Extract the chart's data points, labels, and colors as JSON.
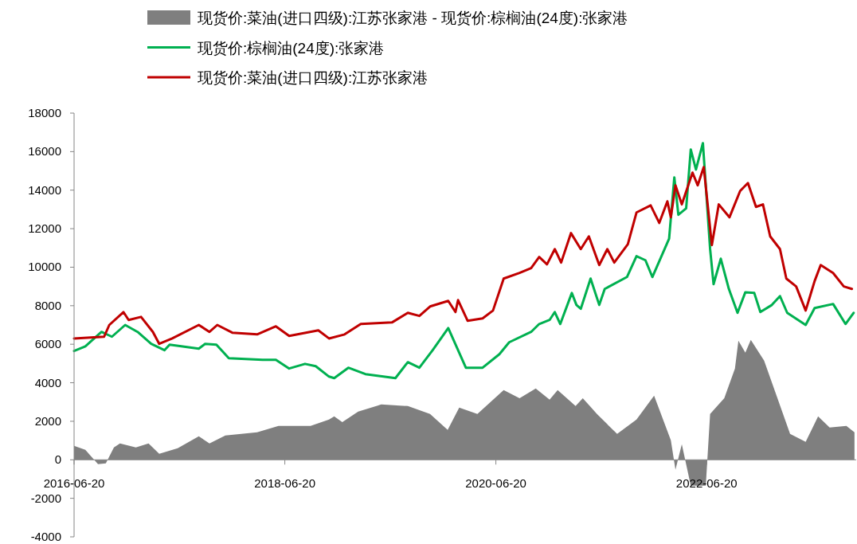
{
  "chart_data": {
    "type": "line",
    "xlim": [
      "2016-06-20",
      "2023-11-20"
    ],
    "xticks": [
      "2016-06-20",
      "2018-06-20",
      "2020-06-20",
      "2022-06-20"
    ],
    "ylim": [
      -4000,
      18000
    ],
    "yticks": [
      -4000,
      -2000,
      0,
      2000,
      4000,
      6000,
      8000,
      10000,
      12000,
      14000,
      16000,
      18000
    ],
    "legend": "top",
    "series": [
      {
        "name": "现货价:菜油(进口四级):江苏张家港 - 现货价:棕榈油(24度):张家港",
        "type": "area",
        "color": "#7f7f7f",
        "x": [
          "2016-06-20",
          "2016-07-29",
          "2016-09-11",
          "2016-10-08",
          "2016-11-05",
          "2016-11-26",
          "2017-01-20",
          "2017-03-05",
          "2017-04-11",
          "2017-06-14",
          "2017-08-26",
          "2017-10-02",
          "2017-11-26",
          "2018-03-16",
          "2018-05-29",
          "2018-09-17",
          "2018-11-20",
          "2018-12-08",
          "2019-01-05",
          "2019-03-01",
          "2019-05-20",
          "2019-08-20",
          "2019-11-05",
          "2020-01-05",
          "2020-02-14",
          "2020-04-17",
          "2020-07-17",
          "2020-09-10",
          "2020-11-05",
          "2020-12-23",
          "2021-01-20",
          "2021-03-23",
          "2021-04-17",
          "2021-06-05",
          "2021-08-14",
          "2021-10-20",
          "2021-12-20",
          "2022-02-16",
          "2022-03-04",
          "2022-03-26",
          "2022-04-26",
          "2022-06-17",
          "2022-07-02",
          "2022-08-20",
          "2022-09-26",
          "2022-10-08",
          "2022-11-01",
          "2022-11-20",
          "2023-01-05",
          "2023-02-23",
          "2023-04-05",
          "2023-05-29",
          "2023-07-11",
          "2023-08-20",
          "2023-10-17",
          "2023-11-14"
        ],
        "values": [
          720,
          520,
          -230,
          -190,
          640,
          850,
          640,
          850,
          310,
          600,
          1220,
          850,
          1260,
          1430,
          1760,
          1760,
          2090,
          2250,
          1960,
          2500,
          2870,
          2790,
          2380,
          1550,
          2710,
          2380,
          3620,
          3200,
          3700,
          3120,
          3620,
          2790,
          3200,
          2380,
          1340,
          2090,
          3330,
          1010,
          -520,
          810,
          -1340,
          -1340,
          2380,
          3200,
          4740,
          6180,
          5560,
          6220,
          5150,
          3080,
          1340,
          930,
          2250,
          1680,
          1760,
          1430
        ]
      },
      {
        "name": "现货价:棕榈油(24度):张家港",
        "color": "#00b050",
        "x": [
          "2016-06-20",
          "2016-07-29",
          "2016-09-23",
          "2016-10-29",
          "2016-12-14",
          "2017-01-26",
          "2017-03-14",
          "2017-04-29",
          "2017-05-17",
          "2017-08-26",
          "2017-09-17",
          "2017-10-26",
          "2017-12-08",
          "2018-04-04",
          "2018-05-20",
          "2018-07-05",
          "2018-08-29",
          "2018-10-05",
          "2018-11-20",
          "2018-12-08",
          "2019-01-26",
          "2019-03-26",
          "2019-07-08",
          "2019-08-20",
          "2019-09-29",
          "2019-11-14",
          "2020-01-07",
          "2020-03-08",
          "2020-05-05",
          "2020-07-02",
          "2020-08-05",
          "2020-10-20",
          "2020-11-17",
          "2020-12-23",
          "2021-01-10",
          "2021-01-29",
          "2021-03-10",
          "2021-03-26",
          "2021-04-10",
          "2021-05-14",
          "2021-06-13",
          "2021-07-02",
          "2021-09-17",
          "2021-10-20",
          "2021-11-20",
          "2021-12-14",
          "2022-02-10",
          "2022-02-28",
          "2022-03-14",
          "2022-04-10",
          "2022-04-26",
          "2022-05-14",
          "2022-06-07",
          "2022-07-02",
          "2022-07-14",
          "2022-08-08",
          "2022-09-05",
          "2022-10-05",
          "2022-11-01",
          "2022-12-02",
          "2022-12-23",
          "2023-02-01",
          "2023-03-01",
          "2023-03-26",
          "2023-05-29",
          "2023-06-29",
          "2023-09-01",
          "2023-10-14",
          "2023-11-11"
        ],
        "values": [
          5650,
          5890,
          6640,
          6390,
          7000,
          6640,
          6020,
          5690,
          5980,
          5770,
          6020,
          5980,
          5270,
          5190,
          5190,
          4740,
          4980,
          4860,
          4320,
          4240,
          4780,
          4450,
          4240,
          5070,
          4780,
          5690,
          6840,
          4780,
          4780,
          5480,
          6100,
          6640,
          7050,
          7260,
          7670,
          7050,
          8660,
          8040,
          7840,
          9410,
          8040,
          8870,
          9490,
          10570,
          10360,
          9490,
          11480,
          14660,
          12720,
          13050,
          16110,
          15070,
          16440,
          10940,
          9120,
          10440,
          8870,
          7630,
          8700,
          8660,
          7670,
          8040,
          8500,
          7630,
          7000,
          7880,
          8090,
          7050,
          7630
        ]
      },
      {
        "name": "现货价:菜油(进口四级):江苏张家港",
        "color": "#c00000",
        "x": [
          "2016-06-20",
          "2016-10-02",
          "2016-10-20",
          "2016-12-08",
          "2016-12-26",
          "2017-02-07",
          "2017-03-20",
          "2017-04-11",
          "2017-05-26",
          "2017-08-26",
          "2017-10-02",
          "2017-10-29",
          "2017-12-20",
          "2018-03-16",
          "2018-05-20",
          "2018-07-05",
          "2018-10-14",
          "2018-11-20",
          "2019-01-13",
          "2019-03-10",
          "2019-06-26",
          "2019-08-20",
          "2019-09-29",
          "2019-11-05",
          "2020-01-07",
          "2020-02-01",
          "2020-02-10",
          "2020-03-14",
          "2020-05-05",
          "2020-06-10",
          "2020-07-17",
          "2020-09-10",
          "2020-10-20",
          "2020-11-17",
          "2020-12-14",
          "2021-01-10",
          "2021-02-01",
          "2021-03-07",
          "2021-04-10",
          "2021-05-08",
          "2021-06-13",
          "2021-07-11",
          "2021-08-04",
          "2021-09-20",
          "2021-10-20",
          "2021-12-08",
          "2022-01-07",
          "2022-02-04",
          "2022-02-16",
          "2022-03-04",
          "2022-03-26",
          "2022-05-02",
          "2022-05-20",
          "2022-06-10",
          "2022-07-08",
          "2022-08-01",
          "2022-09-07",
          "2022-10-14",
          "2022-11-10",
          "2022-12-08",
          "2023-01-01",
          "2023-01-26",
          "2023-03-01",
          "2023-03-23",
          "2023-04-26",
          "2023-05-29",
          "2023-06-29",
          "2023-07-20",
          "2023-09-01",
          "2023-10-08",
          "2023-11-05"
        ],
        "values": [
          6300,
          6390,
          7000,
          7670,
          7260,
          7420,
          6640,
          6020,
          6300,
          7000,
          6640,
          7000,
          6600,
          6510,
          6930,
          6430,
          6720,
          6300,
          6510,
          7050,
          7130,
          7630,
          7470,
          7960,
          8250,
          7670,
          8290,
          7220,
          7340,
          7750,
          9410,
          9700,
          9950,
          10530,
          10150,
          10940,
          10240,
          11770,
          10940,
          11600,
          10110,
          10940,
          10240,
          11190,
          12840,
          13210,
          12300,
          13420,
          12590,
          14250,
          13260,
          14910,
          14250,
          15200,
          11150,
          13260,
          12590,
          13960,
          14370,
          13130,
          13260,
          11600,
          10940,
          9410,
          9000,
          7750,
          9280,
          10110,
          9700,
          9000,
          8870
        ]
      }
    ]
  }
}
